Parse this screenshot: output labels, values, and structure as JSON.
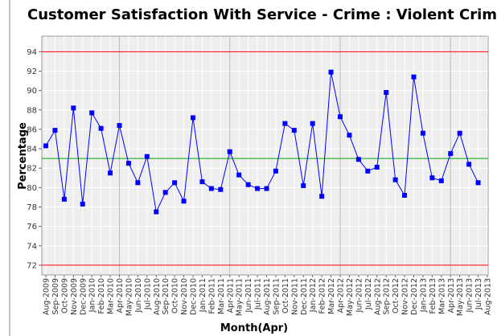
{
  "chart_data": {
    "type": "line",
    "title": "Customer Satisfaction With Service - Crime : Violent Crime",
    "x_label": "Month(Apr)",
    "y_label": "Percentage",
    "categories": [
      "Aug-2009",
      "Sep-2009",
      "Oct-2009",
      "Nov-2009",
      "Dec-2009",
      "Jan-2010",
      "Feb-2010",
      "Mar-2010",
      "Apr-2010",
      "May-2010",
      "Jun-2010",
      "Jul-2010",
      "Aug-2010",
      "Sep-2010",
      "Oct-2010",
      "Nov-2010",
      "Dec-2010",
      "Jan-2011",
      "Feb-2011",
      "Mar-2011",
      "Apr-2011",
      "May-2011",
      "Jun-2011",
      "Jul-2011",
      "Aug-2011",
      "Sep-2011",
      "Oct-2011",
      "Nov-2011",
      "Dec-2011",
      "Jan-2012",
      "Feb-2012",
      "Mar-2012",
      "Apr-2012",
      "May-2012",
      "Jun-2012",
      "Jul-2012",
      "Aug-2012",
      "Sep-2012",
      "Oct-2012",
      "Nov-2012",
      "Dec-2012",
      "Jan-2013",
      "Feb-2013",
      "Mar-2013",
      "Apr-2013",
      "May-2013",
      "Jun-2013",
      "Jul-2013",
      "Aug-2013"
    ],
    "series": [
      {
        "color": "#0000ff",
        "values": [
          84.3,
          85.9,
          78.8,
          88.2,
          78.3,
          87.7,
          86.1,
          81.5,
          86.4,
          82.5,
          80.5,
          83.2,
          77.5,
          79.5,
          80.5,
          78.6,
          87.2,
          80.6,
          79.9,
          79.8,
          83.7,
          81.3,
          80.3,
          79.9,
          79.9,
          81.7,
          86.6,
          85.9,
          80.2,
          86.6,
          79.1,
          91.9,
          87.3,
          85.4,
          82.9,
          81.7,
          82.1,
          89.8,
          80.8,
          79.2,
          91.4,
          85.6,
          81.0,
          80.7,
          83.5,
          85.6,
          82.4,
          80.5,
          null
        ]
      }
    ],
    "reference_lines": [
      {
        "value": 94,
        "color": "#ff0000"
      },
      {
        "value": 83,
        "color": "#00aa00"
      },
      {
        "value": 72,
        "color": "#ff0000"
      }
    ],
    "ylim": [
      71,
      95.6
    ],
    "yticks": [
      72,
      74,
      76,
      78,
      80,
      82,
      84,
      86,
      88,
      90,
      92,
      94
    ],
    "grid": true
  }
}
